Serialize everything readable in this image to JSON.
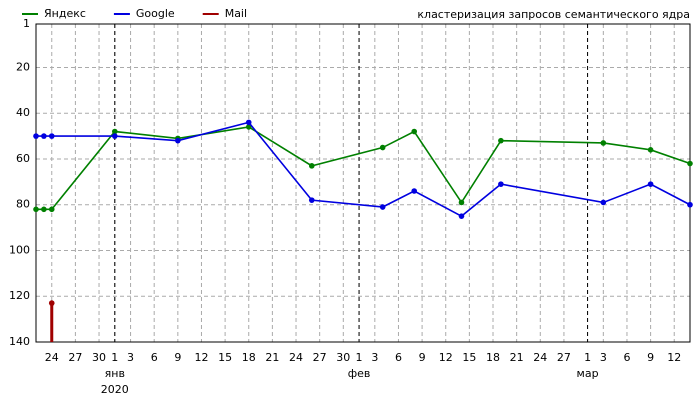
{
  "chart_data": {
    "type": "line",
    "annotation": "кластеризация запросов семантического ядра",
    "x": [
      "12-22",
      "12-23",
      "12-24",
      "01-01",
      "01-09",
      "01-18",
      "01-26",
      "02-04",
      "02-08",
      "02-14",
      "02-19",
      "03-03",
      "03-09",
      "03-14"
    ],
    "series": [
      {
        "name": "Яндекс",
        "color": "#008000",
        "values": [
          82,
          82,
          82,
          48,
          51,
          46,
          63,
          55,
          48,
          79,
          52,
          53,
          56,
          62
        ]
      },
      {
        "name": "Google",
        "color": "#0000e0",
        "values": [
          50,
          50,
          50,
          50,
          52,
          44,
          78,
          81,
          74,
          85,
          71,
          79,
          71,
          80
        ]
      },
      {
        "name": "Mail",
        "color": "#a00000",
        "values": [
          null,
          null,
          123,
          null,
          null,
          null,
          null,
          null,
          null,
          null,
          null,
          null,
          null,
          null
        ]
      }
    ],
    "xlim": [
      "12-22",
      "03-14"
    ],
    "xticks": [
      {
        "value": "12-24",
        "label": "24"
      },
      {
        "value": "12-27",
        "label": "27"
      },
      {
        "value": "12-30",
        "label": "30"
      },
      {
        "value": "01-01",
        "label": "1"
      },
      {
        "value": "01-03",
        "label": "3"
      },
      {
        "value": "01-06",
        "label": "6"
      },
      {
        "value": "01-09",
        "label": "9"
      },
      {
        "value": "01-12",
        "label": "12"
      },
      {
        "value": "01-15",
        "label": "15"
      },
      {
        "value": "01-18",
        "label": "18"
      },
      {
        "value": "01-21",
        "label": "21"
      },
      {
        "value": "01-24",
        "label": "24"
      },
      {
        "value": "01-27",
        "label": "27"
      },
      {
        "value": "01-30",
        "label": "30"
      },
      {
        "value": "02-01",
        "label": "1"
      },
      {
        "value": "02-03",
        "label": "3"
      },
      {
        "value": "02-06",
        "label": "6"
      },
      {
        "value": "02-09",
        "label": "9"
      },
      {
        "value": "02-12",
        "label": "12"
      },
      {
        "value": "02-15",
        "label": "15"
      },
      {
        "value": "02-18",
        "label": "18"
      },
      {
        "value": "02-21",
        "label": "21"
      },
      {
        "value": "02-24",
        "label": "24"
      },
      {
        "value": "02-27",
        "label": "27"
      },
      {
        "value": "03-01",
        "label": "1"
      },
      {
        "value": "03-03",
        "label": "3"
      },
      {
        "value": "03-06",
        "label": "6"
      },
      {
        "value": "03-09",
        "label": "9"
      },
      {
        "value": "03-12",
        "label": "12"
      }
    ],
    "month_labels": [
      {
        "value": "01-01",
        "label": "янв"
      },
      {
        "value": "02-01",
        "label": "фев"
      },
      {
        "value": "03-01",
        "label": "мар"
      }
    ],
    "year_label": {
      "value": "01-01",
      "label": "2020"
    },
    "ylim": [
      140,
      1
    ],
    "yticks": [
      1,
      20,
      40,
      60,
      80,
      100,
      120,
      140
    ],
    "grid": true
  }
}
